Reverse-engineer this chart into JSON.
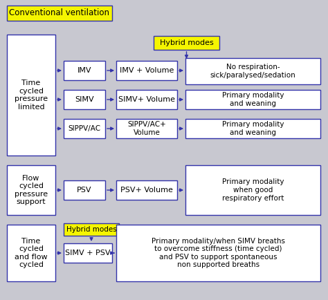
{
  "bg_color": "#c8c8d0",
  "box_fill": "#ffffff",
  "yellow_fill": "#f5f500",
  "box_edge": "#3333aa",
  "arrow_color": "#3333aa",
  "title": "Conventional ventilation",
  "section1_label": "Time\ncycled\npressure\nlimited",
  "section2_label": "Flow\ncycled\npressure\nsupport",
  "section3_label": "Time\ncycled\nand flow\ncycled",
  "hybrid1_label": "Hybrid modes",
  "hybrid2_label": "Hybrid modes",
  "row1_col2": "IMV",
  "row2_col2": "SIMV",
  "row3_col2": "SIPPV/AC",
  "row1_col3": "IMV + Volume",
  "row2_col3": "SIMV+ Volume",
  "row3_col3": "SIPPV/AC+\nVolume",
  "row1_col4": "No respiration-\nsick/paralysed/sedation",
  "row2_col4": "Primary modality\nand weaning",
  "row3_col4": "Primary modality\nand weaning",
  "row4_col2": "PSV",
  "row4_col3": "PSV+ Volume",
  "row4_col4": "Primary modality\nwhen good\nrespiratory effort",
  "row5_col2": "SIMV + PSV",
  "row5_col3": "Primary modality/when SIMV breaths\nto overcome stiffness (time cycled)\nand PSV to support spontaneous\nnon supported breaths"
}
